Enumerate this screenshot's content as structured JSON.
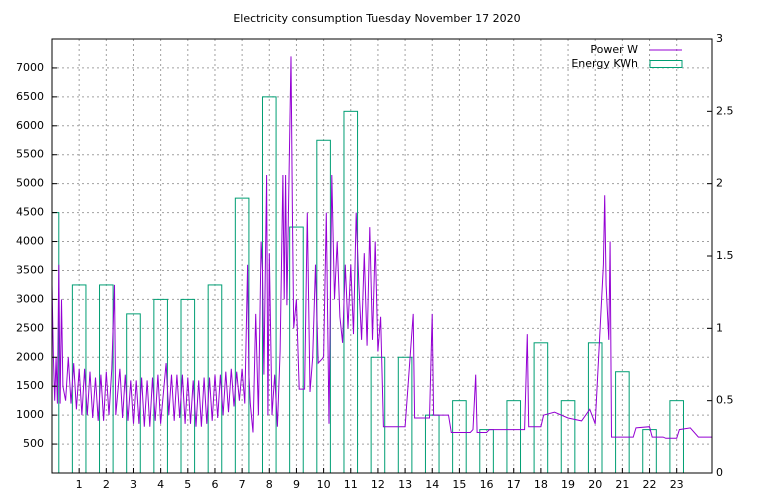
{
  "chart_data": {
    "type": "line",
    "title": "Electricity consumption Tuesday November 17 2020",
    "xlim": [
      0,
      24.3
    ],
    "xticks": [
      1,
      2,
      3,
      4,
      5,
      6,
      7,
      8,
      9,
      10,
      11,
      12,
      13,
      14,
      15,
      16,
      17,
      18,
      19,
      20,
      21,
      22,
      23
    ],
    "ylim": [
      0,
      7500
    ],
    "yticks": [
      500,
      1000,
      1500,
      2000,
      2500,
      3000,
      3500,
      4000,
      4500,
      5000,
      5500,
      6000,
      6500,
      7000
    ],
    "y2lim": [
      0,
      3
    ],
    "y2ticks": [
      0,
      0.5,
      1,
      1.5,
      2,
      2.5,
      3
    ],
    "grid": true,
    "legend": "top-right",
    "series": [
      {
        "name": "Power W",
        "type": "line",
        "color": "#9400d3",
        "x": [
          0.0,
          0.05,
          0.1,
          0.15,
          0.2,
          0.25,
          0.3,
          0.35,
          0.4,
          0.5,
          0.6,
          0.7,
          0.8,
          0.9,
          1.0,
          1.1,
          1.2,
          1.3,
          1.4,
          1.5,
          1.6,
          1.7,
          1.8,
          1.9,
          2.0,
          2.1,
          2.2,
          2.3,
          2.35,
          2.5,
          2.6,
          2.7,
          2.8,
          2.9,
          3.0,
          3.1,
          3.2,
          3.3,
          3.4,
          3.5,
          3.6,
          3.7,
          3.8,
          3.9,
          4.0,
          4.2,
          4.3,
          4.4,
          4.5,
          4.6,
          4.7,
          4.8,
          4.9,
          5.0,
          5.1,
          5.2,
          5.3,
          5.4,
          5.5,
          5.6,
          5.7,
          5.8,
          5.9,
          6.0,
          6.1,
          6.2,
          6.3,
          6.4,
          6.5,
          6.6,
          6.7,
          6.8,
          6.9,
          7.0,
          7.1,
          7.2,
          7.25,
          7.3,
          7.4,
          7.5,
          7.6,
          7.7,
          7.75,
          7.8,
          7.9,
          7.95,
          8.0,
          8.1,
          8.2,
          8.3,
          8.4,
          8.5,
          8.55,
          8.6,
          8.65,
          8.8,
          8.85,
          8.9,
          9.0,
          9.1,
          9.3,
          9.4,
          9.5,
          9.6,
          9.7,
          9.8,
          10.0,
          10.1,
          10.2,
          10.3,
          10.4,
          10.5,
          10.6,
          10.7,
          10.8,
          10.9,
          11.0,
          11.1,
          11.2,
          11.3,
          11.4,
          11.5,
          11.6,
          11.7,
          11.8,
          11.9,
          12.0,
          12.1,
          12.2,
          13.0,
          13.3,
          13.35,
          13.9,
          14.0,
          14.05,
          14.6,
          14.7,
          15.4,
          15.5,
          15.6,
          15.65,
          16.0,
          16.1,
          17.4,
          17.5,
          17.55,
          18.0,
          18.1,
          18.5,
          19.0,
          19.5,
          19.8,
          20.0,
          20.3,
          20.35,
          20.4,
          20.5,
          20.55,
          20.6,
          21.4,
          21.5,
          22.0,
          22.1,
          22.5,
          22.6,
          23.0,
          23.1,
          23.5,
          23.8,
          24.3
        ],
        "values": [
          3250,
          2000,
          1250,
          2000,
          1200,
          3600,
          1200,
          3000,
          1500,
          1250,
          2000,
          1200,
          1900,
          1100,
          1800,
          1000,
          1800,
          1000,
          1750,
          950,
          1650,
          900,
          1700,
          900,
          1750,
          1000,
          1800,
          3250,
          1000,
          1800,
          950,
          1700,
          900,
          1600,
          850,
          1600,
          850,
          1650,
          800,
          1600,
          800,
          1650,
          900,
          1700,
          850,
          1900,
          1000,
          1700,
          900,
          1700,
          950,
          1700,
          850,
          1650,
          850,
          1600,
          800,
          1600,
          800,
          1650,
          850,
          1650,
          900,
          1700,
          950,
          1700,
          1000,
          1750,
          1050,
          1800,
          1150,
          1750,
          1250,
          1800,
          1200,
          3600,
          1700,
          1200,
          700,
          2750,
          1000,
          4000,
          3500,
          1700,
          5150,
          1000,
          3800,
          1000,
          1700,
          800,
          2100,
          5150,
          3000,
          5150,
          2900,
          7200,
          4500,
          2500,
          3000,
          1450,
          1450,
          4500,
          1400,
          2000,
          3600,
          1900,
          2000,
          4500,
          850,
          5150,
          3000,
          4000,
          2700,
          2250,
          3600,
          2500,
          3600,
          2400,
          4500,
          3250,
          2300,
          3800,
          2200,
          4250,
          2300,
          4000,
          2100,
          2700,
          800,
          800,
          2750,
          950,
          950,
          2750,
          1000,
          1000,
          700,
          700,
          750,
          1700,
          700,
          700,
          750,
          750,
          2400,
          800,
          800,
          1000,
          1050,
          950,
          900,
          1100,
          850,
          3600,
          4800,
          3250,
          2300,
          4000,
          620,
          620,
          780,
          800,
          620,
          620,
          600,
          600,
          750,
          780,
          620,
          620
        ]
      },
      {
        "name": "Energy KWh",
        "type": "bar",
        "axis": "y2",
        "color": "#009e73",
        "x": [
          0,
          1,
          2,
          3,
          4,
          5,
          6,
          7,
          8,
          9,
          10,
          11,
          12,
          13,
          14,
          15,
          16,
          17,
          18,
          19,
          20,
          21,
          22,
          23
        ],
        "values": [
          1.8,
          1.3,
          1.3,
          1.1,
          1.2,
          1.2,
          1.3,
          1.9,
          2.6,
          1.7,
          2.3,
          2.5,
          0.8,
          0.8,
          0.4,
          0.5,
          0.3,
          0.5,
          0.9,
          0.5,
          0.9,
          0.7,
          0.3,
          0.5
        ]
      }
    ]
  }
}
